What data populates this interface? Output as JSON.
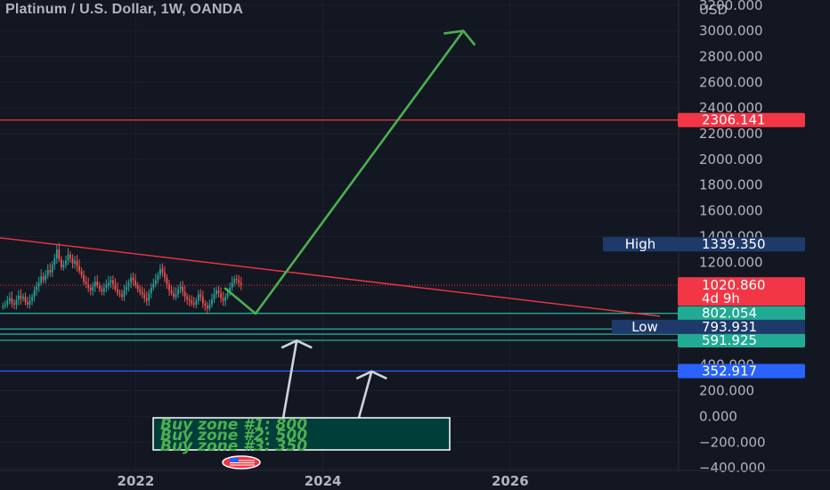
{
  "header": {
    "title": "Platinum / U.S. Dollar, 1W, OANDA"
  },
  "chart_data": {
    "type": "candlestick",
    "title": "Platinum / U.S. Dollar, 1W, OANDA",
    "axis_unit": "USD",
    "y_ticks": [
      -400,
      -200,
      0,
      200,
      400,
      600,
      800,
      1000,
      1200,
      1400,
      1600,
      1800,
      2000,
      2200,
      2400,
      2600,
      2800,
      3000,
      3200
    ],
    "y_tick_labels": [
      "−400.000",
      "−200.000",
      "0.000",
      "200.000",
      "400.000",
      "600.000",
      "800.000",
      "1000.000",
      "1200.000",
      "1400.000",
      "1600.000",
      "1800.000",
      "2000.000",
      "2200.000",
      "2400.000",
      "2600.000",
      "2800.000",
      "3000.000",
      "3200.000"
    ],
    "x_ticks": [
      2022,
      2024,
      2026
    ],
    "x_tick_labels": [
      "2022",
      "2024",
      "2026"
    ],
    "ylim": [
      -420,
      3240
    ],
    "xlim": [
      2020.55,
      2027.8
    ],
    "candles_close": [
      860,
      870,
      900,
      920,
      880,
      870,
      905,
      940,
      915,
      930,
      890,
      870,
      900,
      930,
      980,
      1010,
      1040,
      1090,
      1060,
      1100,
      1140,
      1120,
      1180,
      1230,
      1300,
      1220,
      1160,
      1180,
      1210,
      1260,
      1230,
      1190,
      1210,
      1170,
      1130,
      1100,
      1050,
      1030,
      1000,
      980,
      1010,
      1050,
      1020,
      990,
      970,
      1000,
      1020,
      1040,
      1060,
      1030,
      990,
      960,
      950,
      930,
      980,
      1010,
      1040,
      1080,
      1060,
      1020,
      990,
      970,
      950,
      920,
      900,
      960,
      1000,
      1030,
      1060,
      1100,
      1150,
      1120,
      1080,
      1030,
      980,
      960,
      930,
      950,
      990,
      1010,
      970,
      930,
      910,
      900,
      880,
      870,
      900,
      950,
      930,
      880,
      860,
      840,
      870,
      910,
      950,
      980,
      960,
      920,
      900,
      930,
      960,
      1000,
      1040,
      1070,
      1060,
      1040,
      1020
    ],
    "horizontal_levels": [
      {
        "value": 2306.141,
        "label": "2306.141",
        "color": "#f23645"
      },
      {
        "value": 1020.86,
        "label": "1020.860",
        "color": "#f23645"
      },
      {
        "value": 802.054,
        "label": "802.054",
        "color": "#22ab94"
      },
      {
        "value": 591.925,
        "label": "591.925",
        "color": "#22ab94"
      },
      {
        "value": 352.917,
        "label": "352.917",
        "color": "#2962ff"
      }
    ],
    "high": {
      "label": "High",
      "value_label": "1339.350",
      "value": 1339.35
    },
    "low": {
      "label": "Low",
      "value_label": "793.931",
      "value": 793.931
    },
    "countdown": "4d 9h",
    "extra_green_lines": [
      640,
      680
    ],
    "trendline": {
      "from": [
        2020.55,
        1390
      ],
      "to": [
        2027.6,
        780
      ],
      "color": "#f23645"
    },
    "projection_path": [
      [
        2022.95,
        1000
      ],
      [
        2023.28,
        800
      ],
      [
        2025.5,
        3000
      ]
    ],
    "arrow_heads": [
      [
        2025.5,
        3000
      ]
    ],
    "buy_arrows": [
      {
        "from": [
          2023.55,
          -120
        ],
        "to": [
          2023.72,
          590
        ]
      },
      {
        "from": [
          2024.35,
          -100
        ],
        "to": [
          2024.52,
          350
        ]
      }
    ],
    "annotation_lines": [
      "Buy zone #1: 800",
      "Buy zone #2: 500",
      "Buy zone #3: 350"
    ],
    "colors": {
      "bg": "#131722",
      "up": "#26a69a",
      "down": "#ef5350",
      "projection": "#4caf50",
      "note_bg": "#003e3a",
      "note_text": "#4caf50",
      "high_low_badge": "#1e3a6a"
    }
  }
}
